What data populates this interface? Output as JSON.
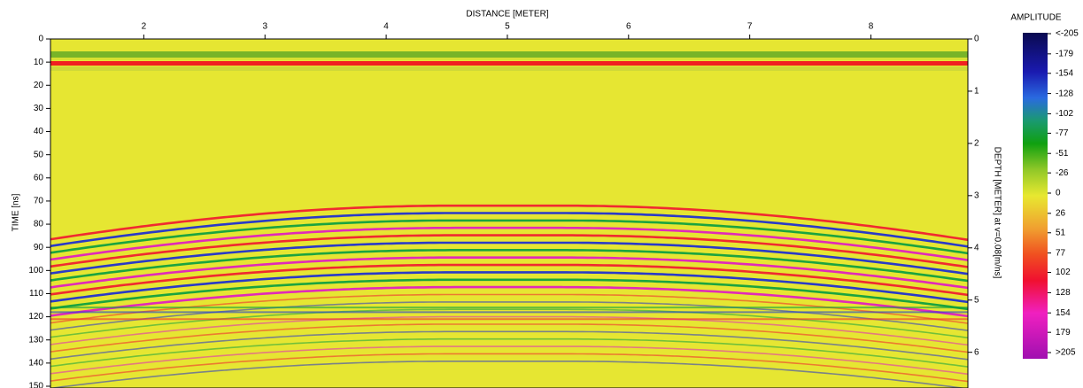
{
  "chart_data": {
    "type": "heatmap",
    "x_label": "DISTANCE [METER]",
    "y_label": "TIME [ns]",
    "y2_label": "DEPTH [METER] at v=0.08[m/ns]",
    "xlim": [
      1.23,
      8.8
    ],
    "xticks": [
      2,
      3,
      4,
      5,
      6,
      7,
      8
    ],
    "ylim": [
      0,
      150
    ],
    "yticks": [
      0,
      10,
      20,
      30,
      40,
      50,
      60,
      70,
      80,
      90,
      100,
      110,
      120,
      130,
      140,
      150
    ],
    "y2lim": [
      0,
      6.65
    ],
    "y2ticks": [
      0,
      1,
      2,
      3,
      4,
      5,
      6
    ],
    "colorbar": {
      "title": "AMPLITUDE",
      "clim": [
        -205,
        205
      ],
      "ticks": [
        {
          "value": -205,
          "label": "<-205"
        },
        -179,
        -154,
        -128,
        -102,
        -77,
        -51,
        -26,
        0,
        26,
        51,
        77,
        102,
        128,
        154,
        179,
        {
          "value": 205,
          "label": ">205"
        }
      ]
    }
  }
}
